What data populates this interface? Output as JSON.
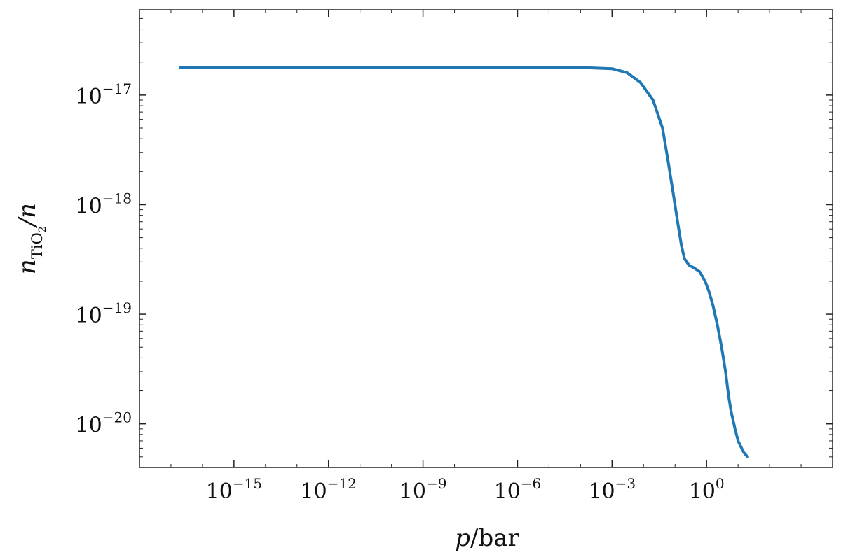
{
  "chart_data": {
    "type": "line",
    "title": "",
    "xlabel": {
      "var": "p",
      "unit": "/bar"
    },
    "ylabel": {
      "var": "n",
      "sub_main": "TiO",
      "sub_sub": "2",
      "den": "/n"
    },
    "x_scale": "log",
    "y_scale": "log",
    "xlim": [
      1e-18,
      10000.0
    ],
    "ylim": [
      4e-21,
      6e-17
    ],
    "grid": false,
    "legend": "none",
    "x_ticks": [
      {
        "value": 1e-15,
        "base": "10",
        "exp": "−15"
      },
      {
        "value": 1e-12,
        "base": "10",
        "exp": "−12"
      },
      {
        "value": 1e-09,
        "base": "10",
        "exp": "−9"
      },
      {
        "value": 1e-06,
        "base": "10",
        "exp": "−6"
      },
      {
        "value": 0.001,
        "base": "10",
        "exp": "−3"
      },
      {
        "value": 1,
        "base": "10",
        "exp": "0"
      }
    ],
    "y_ticks": [
      {
        "value": 1e-17,
        "base": "10",
        "exp": "−17"
      },
      {
        "value": 1e-18,
        "base": "10",
        "exp": "−18"
      },
      {
        "value": 1e-19,
        "base": "10",
        "exp": "−19"
      },
      {
        "value": 1e-20,
        "base": "10",
        "exp": "−20"
      }
    ],
    "series": [
      {
        "color": "#1f77b4",
        "x": [
          2e-17,
          1e-14,
          1e-11,
          1e-08,
          1e-05,
          0.0002,
          0.001,
          0.003,
          0.008,
          0.02,
          0.04,
          0.06,
          0.09,
          0.12,
          0.16,
          0.2,
          0.28,
          0.4,
          0.6,
          0.9,
          1.2,
          1.6,
          2.2,
          3,
          4,
          5,
          6,
          8,
          10,
          15,
          20
        ],
        "y": [
          1.78e-17,
          1.78e-17,
          1.78e-17,
          1.78e-17,
          1.78e-17,
          1.77e-17,
          1.74e-17,
          1.6e-17,
          1.3e-17,
          9e-18,
          5e-18,
          2.5e-18,
          1.2e-18,
          7e-19,
          4.2e-19,
          3.2e-19,
          2.8e-19,
          2.65e-19,
          2.45e-19,
          2e-19,
          1.6e-19,
          1.2e-19,
          8e-20,
          5e-20,
          3e-20,
          1.8e-20,
          1.3e-20,
          9e-21,
          7e-21,
          5.5e-21,
          5e-21
        ]
      }
    ]
  }
}
